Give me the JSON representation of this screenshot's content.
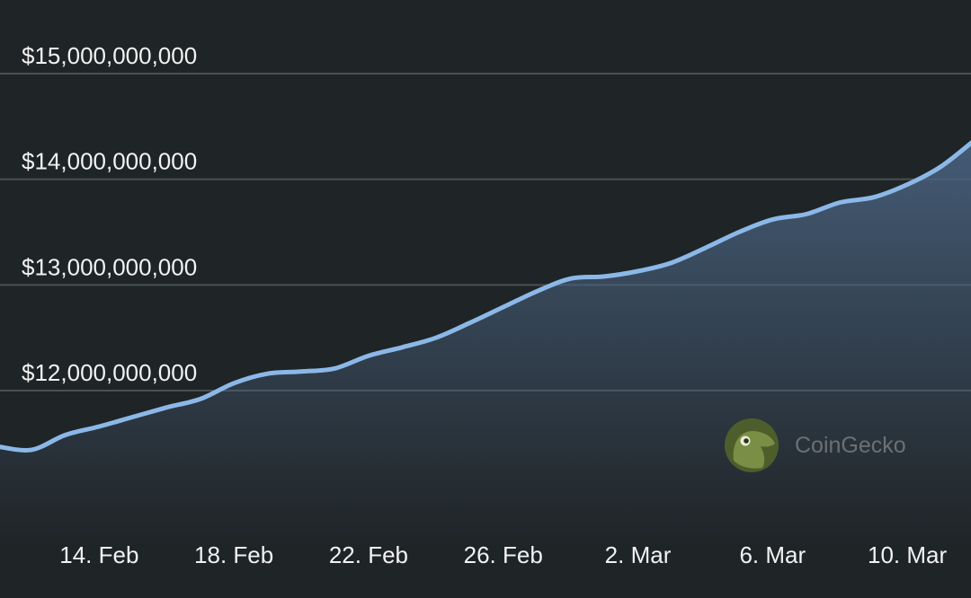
{
  "colors": {
    "background": "#1f2426",
    "line": "#8bb8e8",
    "grid": "#4a4f52",
    "label": "#f2f2f2",
    "watermark_text": "#6b7073",
    "watermark_logo": "#4d5e2c"
  },
  "watermark": {
    "text": "CoinGecko",
    "icon": "gecko-logo-icon"
  },
  "chart_data": {
    "type": "area",
    "title": "",
    "xlabel": "",
    "ylabel": "",
    "y_ticks": [
      "$12,000,000,000",
      "$13,000,000,000",
      "$14,000,000,000",
      "$15,000,000,000"
    ],
    "x_ticks": [
      "14. Feb",
      "18. Feb",
      "22. Feb",
      "26. Feb",
      "2. Mar",
      "6. Mar",
      "10. Mar"
    ],
    "ylim": [
      11000000000,
      15800000000
    ],
    "grid": true,
    "legend": "none",
    "series": [
      {
        "x": [
          "2025-02-11",
          "2025-02-12",
          "2025-02-13",
          "2025-02-14",
          "2025-02-15",
          "2025-02-16",
          "2025-02-17",
          "2025-02-18",
          "2025-02-19",
          "2025-02-20",
          "2025-02-21",
          "2025-02-22",
          "2025-02-23",
          "2025-02-24",
          "2025-02-25",
          "2025-02-26",
          "2025-02-27",
          "2025-02-28",
          "2025-03-01",
          "2025-03-02",
          "2025-03-03",
          "2025-03-04",
          "2025-03-05",
          "2025-03-06",
          "2025-03-07",
          "2025-03-08",
          "2025-03-09",
          "2025-03-10",
          "2025-03-11",
          "2025-03-12"
        ],
        "y": [
          11470000000,
          11440000000,
          11580000000,
          11660000000,
          11750000000,
          11840000000,
          11920000000,
          12070000000,
          12160000000,
          12180000000,
          12210000000,
          12330000000,
          12410000000,
          12500000000,
          12640000000,
          12790000000,
          12940000000,
          13060000000,
          13080000000,
          13130000000,
          13210000000,
          13350000000,
          13500000000,
          13620000000,
          13670000000,
          13780000000,
          13830000000,
          13950000000,
          14120000000,
          14370000000
        ]
      }
    ]
  }
}
